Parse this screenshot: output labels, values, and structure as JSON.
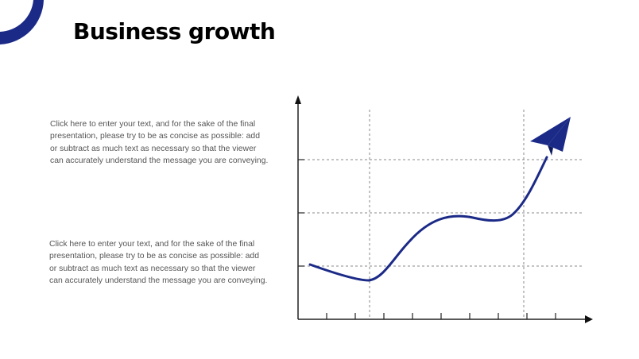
{
  "slide": {
    "title": "Business growth",
    "paragraphs": [
      "Click here to enter your text, and for the sake of the final presentation, please try to be as concise as possible: add or subtract as much text as necessary so that the viewer can accurately understand the message you are conveying.",
      "Click here to enter your text, and for the sake of the final presentation, please try to be as concise as possible: add or subtract as much text as necessary so that the viewer can accurately understand the message you are conveying."
    ],
    "accent_color": "#1b2a87"
  },
  "chart_data": {
    "type": "line",
    "title": "",
    "xlabel": "",
    "ylabel": "",
    "grid": "dashed",
    "color": "#1b2a87",
    "icons": [
      "paper-plane-icon",
      "arrow-icon"
    ]
  }
}
